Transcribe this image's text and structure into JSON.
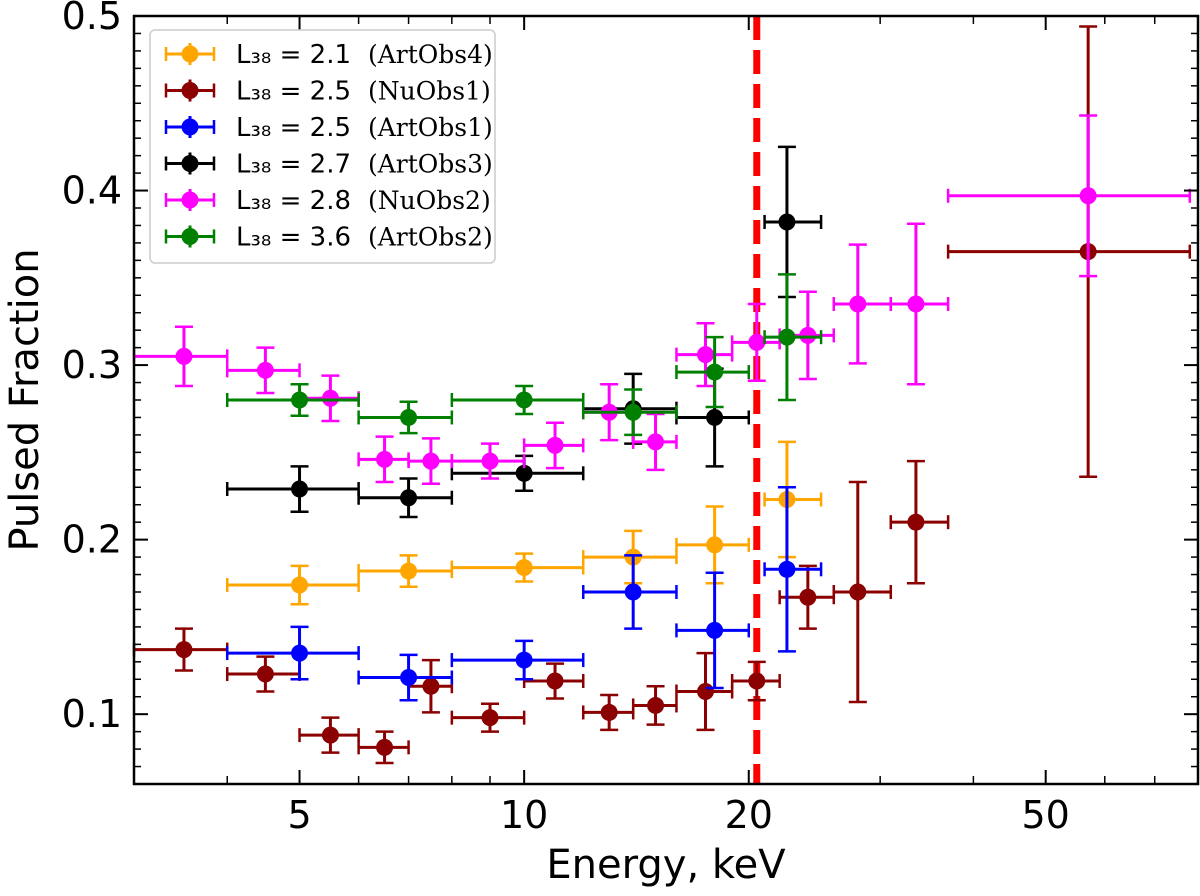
{
  "chart_data": {
    "type": "scatter",
    "xlabel": "Energy, keV",
    "ylabel": "Pulsed Fraction",
    "xscale": "log",
    "xlim": [
      3,
      80
    ],
    "ylim": [
      0.06,
      0.5
    ],
    "xticks": [
      5,
      10,
      20,
      50
    ],
    "xtick_labels": [
      "5",
      "10",
      "20",
      "50"
    ],
    "yticks": [
      0.1,
      0.2,
      0.3,
      0.4,
      0.5
    ],
    "ytick_labels": [
      "0.1",
      "0.2",
      "0.3",
      "0.4",
      "0.5"
    ],
    "legend_position": "top-left",
    "vline": {
      "x": 20.5,
      "color": "#ff0000",
      "style": "dashed"
    },
    "series": [
      {
        "name": "L38 = 2.1 (ArtObs4)",
        "legend_math": "L₃₈ = 2.1",
        "legend_note": "(ArtObs4)",
        "color": "#ffa500",
        "points": [
          {
            "x": 5,
            "xlo": 4,
            "xhi": 6,
            "y": 0.174,
            "yerr": 0.011
          },
          {
            "x": 7,
            "xlo": 6,
            "xhi": 8,
            "y": 0.182,
            "yerr": 0.009
          },
          {
            "x": 10,
            "xlo": 8,
            "xhi": 12,
            "y": 0.184,
            "yerr": 0.008
          },
          {
            "x": 14,
            "xlo": 12,
            "xhi": 16,
            "y": 0.19,
            "yerr": 0.015
          },
          {
            "x": 18,
            "xlo": 16,
            "xhi": 20,
            "y": 0.197,
            "yerr": 0.022
          },
          {
            "x": 22.5,
            "xlo": 21,
            "xhi": 25,
            "y": 0.223,
            "yerr": 0.033
          }
        ]
      },
      {
        "name": "L38 = 2.5 (NuObs1)",
        "legend_math": "L₃₈ = 2.5",
        "legend_note": "(NuObs1)",
        "color": "#8b0000",
        "points": [
          {
            "x": 3.5,
            "xlo": 3,
            "xhi": 4,
            "y": 0.137,
            "yerr": 0.012
          },
          {
            "x": 4.5,
            "xlo": 4,
            "xhi": 5,
            "y": 0.123,
            "yerr": 0.01
          },
          {
            "x": 5.5,
            "xlo": 5,
            "xhi": 6,
            "y": 0.088,
            "yerr": 0.01
          },
          {
            "x": 6.5,
            "xlo": 6,
            "xhi": 7,
            "y": 0.081,
            "yerr": 0.009
          },
          {
            "x": 7.5,
            "xlo": 7,
            "xhi": 8,
            "y": 0.116,
            "yerr": 0.015
          },
          {
            "x": 9,
            "xlo": 8,
            "xhi": 10,
            "y": 0.098,
            "yerr": 0.008
          },
          {
            "x": 11,
            "xlo": 10,
            "xhi": 12,
            "y": 0.119,
            "yerr": 0.01
          },
          {
            "x": 13,
            "xlo": 12,
            "xhi": 14,
            "y": 0.101,
            "yerr": 0.01
          },
          {
            "x": 15,
            "xlo": 14,
            "xhi": 16,
            "y": 0.105,
            "yerr": 0.011
          },
          {
            "x": 17.5,
            "xlo": 16,
            "xhi": 19,
            "y": 0.113,
            "yerr": 0.022
          },
          {
            "x": 20.5,
            "xlo": 19,
            "xhi": 22,
            "y": 0.119,
            "yerr": 0.011
          },
          {
            "x": 24,
            "xlo": 22,
            "xhi": 26,
            "y": 0.167,
            "yerr": 0.018
          },
          {
            "x": 28,
            "xlo": 26,
            "xhi": 31,
            "y": 0.17,
            "yerr": 0.063
          },
          {
            "x": 33.5,
            "xlo": 31,
            "xhi": 37,
            "y": 0.21,
            "yerr": 0.035
          },
          {
            "x": 57,
            "xlo": 37,
            "xhi": 78,
            "y": 0.365,
            "yerr": 0.129
          }
        ]
      },
      {
        "name": "L38 = 2.5 (ArtObs1)",
        "legend_math": "L₃₈ = 2.5",
        "legend_note": "(ArtObs1)",
        "color": "#0000ff",
        "points": [
          {
            "x": 5,
            "xlo": 4,
            "xhi": 6,
            "y": 0.135,
            "yerr": 0.015
          },
          {
            "x": 7,
            "xlo": 6,
            "xhi": 8,
            "y": 0.121,
            "yerr": 0.013
          },
          {
            "x": 10,
            "xlo": 8,
            "xhi": 12,
            "y": 0.131,
            "yerr": 0.011
          },
          {
            "x": 14,
            "xlo": 12,
            "xhi": 16,
            "y": 0.17,
            "yerr": 0.021
          },
          {
            "x": 18,
            "xlo": 16,
            "xhi": 20,
            "y": 0.148,
            "yerr": 0.033
          },
          {
            "x": 22.5,
            "xlo": 21,
            "xhi": 25,
            "y": 0.183,
            "yerr": 0.047
          }
        ]
      },
      {
        "name": "L38 = 2.7 (ArtObs3)",
        "legend_math": "L₃₈ = 2.7",
        "legend_note": "(ArtObs3)",
        "color": "#000000",
        "points": [
          {
            "x": 5,
            "xlo": 4,
            "xhi": 6,
            "y": 0.229,
            "yerr": 0.013
          },
          {
            "x": 7,
            "xlo": 6,
            "xhi": 8,
            "y": 0.224,
            "yerr": 0.011
          },
          {
            "x": 10,
            "xlo": 8,
            "xhi": 12,
            "y": 0.238,
            "yerr": 0.01
          },
          {
            "x": 14,
            "xlo": 12,
            "xhi": 16,
            "y": 0.275,
            "yerr": 0.02
          },
          {
            "x": 18,
            "xlo": 16,
            "xhi": 20,
            "y": 0.27,
            "yerr": 0.028
          },
          {
            "x": 22.5,
            "xlo": 21,
            "xhi": 25,
            "y": 0.382,
            "yerr": 0.043
          }
        ]
      },
      {
        "name": "L38 = 2.8 (NuObs2)",
        "legend_math": "L₃₈ = 2.8",
        "legend_note": "(NuObs2)",
        "color": "#ff00ff",
        "points": [
          {
            "x": 3.5,
            "xlo": 3,
            "xhi": 4,
            "y": 0.305,
            "yerr": 0.017
          },
          {
            "x": 4.5,
            "xlo": 4,
            "xhi": 5,
            "y": 0.297,
            "yerr": 0.013
          },
          {
            "x": 5.5,
            "xlo": 5,
            "xhi": 6,
            "y": 0.281,
            "yerr": 0.013
          },
          {
            "x": 6.5,
            "xlo": 6,
            "xhi": 7,
            "y": 0.246,
            "yerr": 0.013
          },
          {
            "x": 7.5,
            "xlo": 7,
            "xhi": 8,
            "y": 0.245,
            "yerr": 0.013
          },
          {
            "x": 9,
            "xlo": 8,
            "xhi": 10,
            "y": 0.245,
            "yerr": 0.01
          },
          {
            "x": 11,
            "xlo": 10,
            "xhi": 12,
            "y": 0.254,
            "yerr": 0.013
          },
          {
            "x": 13,
            "xlo": 12,
            "xhi": 14,
            "y": 0.273,
            "yerr": 0.016
          },
          {
            "x": 15,
            "xlo": 14,
            "xhi": 16,
            "y": 0.256,
            "yerr": 0.016
          },
          {
            "x": 17.5,
            "xlo": 16,
            "xhi": 19,
            "y": 0.306,
            "yerr": 0.018
          },
          {
            "x": 20.5,
            "xlo": 19,
            "xhi": 22,
            "y": 0.313,
            "yerr": 0.022
          },
          {
            "x": 24,
            "xlo": 22,
            "xhi": 26,
            "y": 0.317,
            "yerr": 0.025
          },
          {
            "x": 28,
            "xlo": 26,
            "xhi": 31,
            "y": 0.335,
            "yerr": 0.034
          },
          {
            "x": 33.5,
            "xlo": 31,
            "xhi": 37,
            "y": 0.335,
            "yerr": 0.046
          },
          {
            "x": 57,
            "xlo": 37,
            "xhi": 78,
            "y": 0.397,
            "yerr": 0.046
          }
        ]
      },
      {
        "name": "L38 = 3.6 (ArtObs2)",
        "legend_math": "L₃₈ = 3.6",
        "legend_note": "(ArtObs2)",
        "color": "#008000",
        "points": [
          {
            "x": 5,
            "xlo": 4,
            "xhi": 6,
            "y": 0.28,
            "yerr": 0.009
          },
          {
            "x": 7,
            "xlo": 6,
            "xhi": 8,
            "y": 0.27,
            "yerr": 0.009
          },
          {
            "x": 10,
            "xlo": 8,
            "xhi": 12,
            "y": 0.28,
            "yerr": 0.008
          },
          {
            "x": 14,
            "xlo": 12,
            "xhi": 16,
            "y": 0.273,
            "yerr": 0.013
          },
          {
            "x": 18,
            "xlo": 16,
            "xhi": 20,
            "y": 0.296,
            "yerr": 0.02
          },
          {
            "x": 22.5,
            "xlo": 21,
            "xhi": 25,
            "y": 0.316,
            "yerr": 0.036
          }
        ]
      }
    ]
  }
}
